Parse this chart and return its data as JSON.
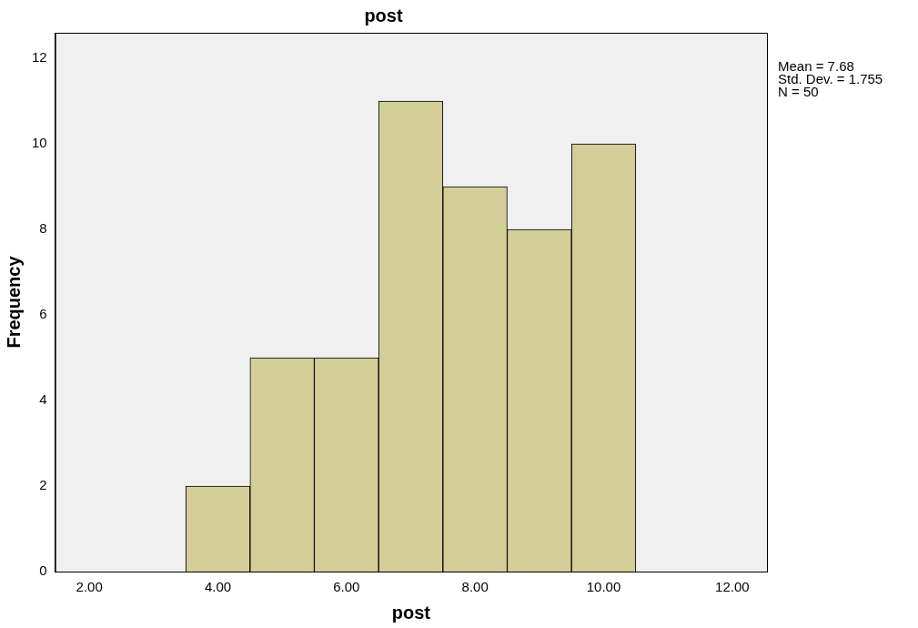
{
  "chart_data": {
    "type": "histogram",
    "title": "post",
    "xlabel": "post",
    "ylabel": "Frequency",
    "bins": [
      3.5,
      4.5,
      5.5,
      6.5,
      7.5,
      8.5,
      9.5,
      10.5
    ],
    "values": [
      2,
      5,
      5,
      11,
      9,
      8,
      10
    ],
    "color": "#d3ce97",
    "xlim": [
      1.47,
      12.54
    ],
    "ylim": [
      0,
      12.6
    ],
    "xticks": [
      {
        "value": 2,
        "label": "2.00"
      },
      {
        "value": 4,
        "label": "4.00"
      },
      {
        "value": 6,
        "label": "6.00"
      },
      {
        "value": 8,
        "label": "8.00"
      },
      {
        "value": 10,
        "label": "10.00"
      },
      {
        "value": 12,
        "label": "12.00"
      }
    ],
    "yticks": [
      0,
      2,
      4,
      6,
      8,
      10,
      12
    ],
    "annotations": [
      "Mean = 7.68",
      "Std. Dev. = 1.755",
      "N = 50"
    ]
  }
}
